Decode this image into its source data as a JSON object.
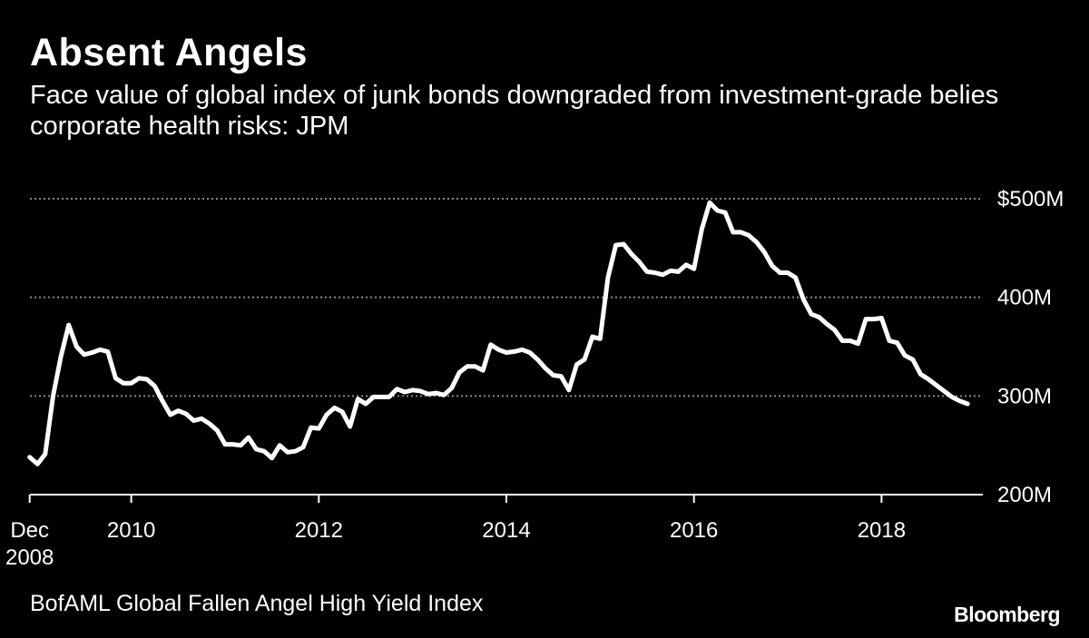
{
  "title": "Absent Angels",
  "subtitle": "Face value of global index of junk bonds downgraded from investment-grade belies corporate health risks: JPM",
  "source": "BofAML Global Fallen Angel High Yield Index",
  "logo": "Bloomberg",
  "colors": {
    "background": "#000000",
    "line": "#ffffff",
    "grid": "#888888"
  },
  "chart_data": {
    "type": "line",
    "title": "Absent Angels",
    "xlabel": "",
    "ylabel": "",
    "ylim": [
      200,
      500
    ],
    "xlim": [
      2008.92,
      2019.08
    ],
    "grid": true,
    "y_ticks": [
      {
        "value": 500,
        "label": "$500M"
      },
      {
        "value": 400,
        "label": "400M"
      },
      {
        "value": 300,
        "label": "300M"
      },
      {
        "value": 200,
        "label": "200M"
      }
    ],
    "x_ticks": [
      {
        "value": 2008.917,
        "label": [
          "Dec",
          "2008"
        ]
      },
      {
        "value": 2010,
        "label": [
          "2010"
        ]
      },
      {
        "value": 2012,
        "label": [
          "2012"
        ]
      },
      {
        "value": 2014,
        "label": [
          "2014"
        ]
      },
      {
        "value": 2016,
        "label": [
          "2016"
        ]
      },
      {
        "value": 2018,
        "label": [
          "2018"
        ]
      }
    ],
    "series": [
      {
        "x": [
          2008.917,
          2009.0,
          2009.083,
          2009.167,
          2009.25,
          2009.333,
          2009.417,
          2009.5,
          2009.583,
          2009.667,
          2009.75,
          2009.833,
          2009.917,
          2010.0,
          2010.083,
          2010.167,
          2010.25,
          2010.333,
          2010.417,
          2010.5,
          2010.583,
          2010.667,
          2010.75,
          2010.833,
          2010.917,
          2011.0,
          2011.083,
          2011.167,
          2011.25,
          2011.333,
          2011.417,
          2011.5,
          2011.583,
          2011.667,
          2011.75,
          2011.833,
          2011.917,
          2012.0,
          2012.083,
          2012.167,
          2012.25,
          2012.333,
          2012.417,
          2012.5,
          2012.583,
          2012.667,
          2012.75,
          2012.833,
          2012.917,
          2013.0,
          2013.083,
          2013.167,
          2013.25,
          2013.333,
          2013.417,
          2013.5,
          2013.583,
          2013.667,
          2013.75,
          2013.833,
          2013.917,
          2014.0,
          2014.083,
          2014.167,
          2014.25,
          2014.333,
          2014.417,
          2014.5,
          2014.583,
          2014.667,
          2014.75,
          2014.833,
          2014.917,
          2015.0,
          2015.083,
          2015.167,
          2015.25,
          2015.333,
          2015.417,
          2015.5,
          2015.583,
          2015.667,
          2015.75,
          2015.833,
          2015.917,
          2016.0,
          2016.083,
          2016.167,
          2016.25,
          2016.333,
          2016.417,
          2016.5,
          2016.583,
          2016.667,
          2016.75,
          2016.833,
          2016.917,
          2017.0,
          2017.083,
          2017.167,
          2017.25,
          2017.333,
          2017.417,
          2017.5,
          2017.583,
          2017.667,
          2017.75,
          2017.833,
          2017.917,
          2018.0,
          2018.083,
          2018.167,
          2018.25,
          2018.333,
          2018.417,
          2018.5,
          2018.583,
          2018.667,
          2018.75,
          2018.833,
          2018.917
        ],
        "values": [
          238,
          231,
          241,
          300,
          340,
          372,
          350,
          342,
          344,
          347,
          345,
          318,
          313,
          313,
          318,
          317,
          310,
          295,
          281,
          285,
          282,
          275,
          277,
          272,
          265,
          251,
          251,
          250,
          258,
          246,
          244,
          237,
          250,
          243,
          244,
          248,
          268,
          267,
          281,
          288,
          284,
          269,
          297,
          292,
          299,
          299,
          299,
          307,
          304,
          306,
          305,
          302,
          303,
          301,
          308,
          324,
          330,
          330,
          326,
          352,
          347,
          344,
          345,
          347,
          344,
          337,
          328,
          321,
          320,
          306,
          332,
          337,
          360,
          358,
          420,
          453,
          454,
          444,
          436,
          426,
          425,
          423,
          427,
          426,
          433,
          429,
          469,
          496,
          488,
          486,
          466,
          466,
          463,
          456,
          446,
          432,
          425,
          425,
          420,
          398,
          383,
          380,
          373,
          367,
          356,
          356,
          353,
          378,
          378,
          379,
          356,
          354,
          341,
          337,
          322,
          317,
          311,
          305,
          299,
          295,
          292
        ]
      }
    ]
  }
}
